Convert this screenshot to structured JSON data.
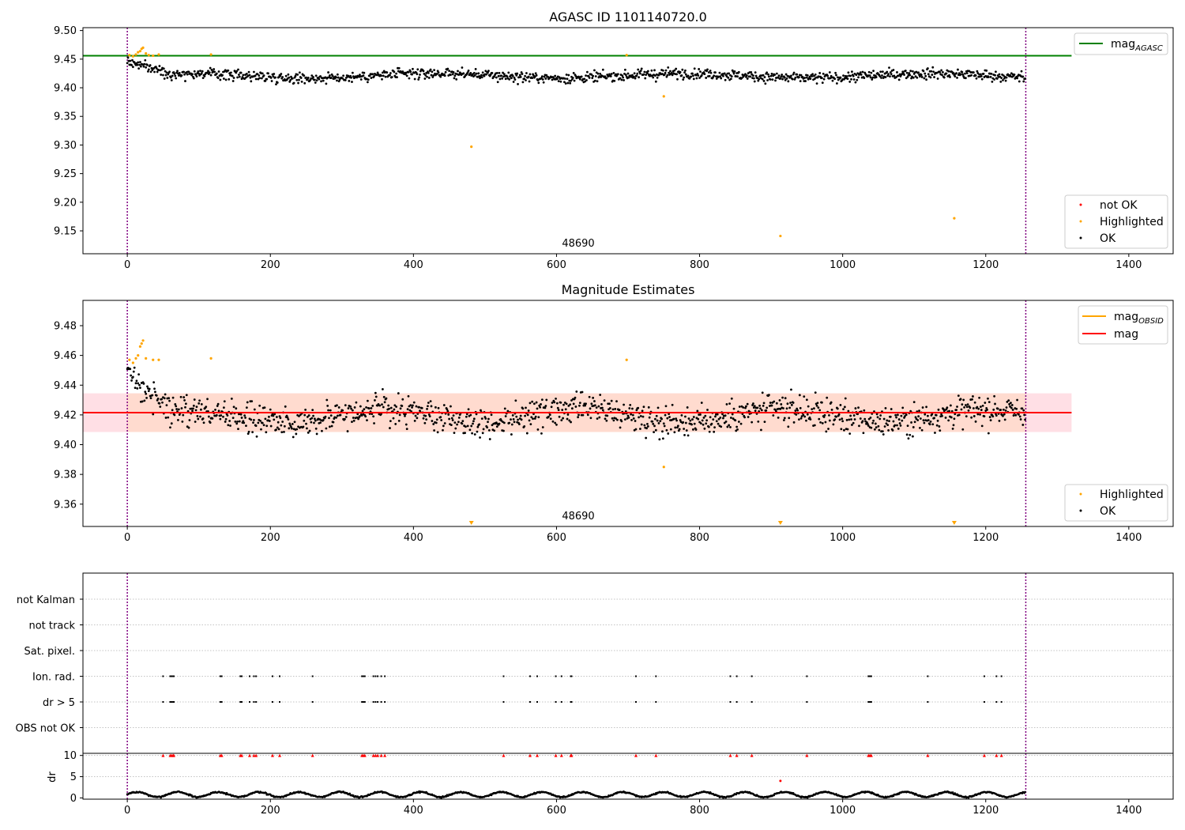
{
  "figure": {
    "colors": {
      "ok": "#000000",
      "highlighted": "#ffa500",
      "not_ok": "#ff0000",
      "mag_agasc_line": "#008000",
      "mag_line": "#ff0000",
      "mag_obsid": "#ffa500",
      "band_fill": "#ffc0cb",
      "band_inner_fill": "#ffd8c0",
      "obs_boundary": "#800080"
    }
  },
  "chart_data": [
    {
      "type": "scatter",
      "title": "AGASC ID 1101140720.0",
      "xlim": [
        -62,
        1462
      ],
      "ylim": [
        9.11,
        9.505
      ],
      "xticks": [
        0,
        200,
        400,
        600,
        800,
        1000,
        1200,
        1400
      ],
      "yticks": [
        9.15,
        9.2,
        9.25,
        9.3,
        9.35,
        9.4,
        9.45,
        9.5
      ],
      "obs_boundaries": [
        0,
        1256
      ],
      "obsid_label": "48690",
      "obsid_label_x": 628,
      "mag_agasc": 9.456,
      "line_x_extent": [
        -62,
        1320
      ],
      "ok_series": {
        "mean": 9.421,
        "noise": 0.011,
        "n": 1256
      },
      "highlighted_points": [
        {
          "x": 3,
          "y": 9.457
        },
        {
          "x": 8,
          "y": 9.455
        },
        {
          "x": 12,
          "y": 9.458
        },
        {
          "x": 15,
          "y": 9.462
        },
        {
          "x": 18,
          "y": 9.464
        },
        {
          "x": 20,
          "y": 9.468
        },
        {
          "x": 22,
          "y": 9.47
        },
        {
          "x": 26,
          "y": 9.46
        },
        {
          "x": 30,
          "y": 9.457
        },
        {
          "x": 36,
          "y": 9.456
        },
        {
          "x": 44,
          "y": 9.458
        },
        {
          "x": 117,
          "y": 9.458
        },
        {
          "x": 481,
          "y": 9.297
        },
        {
          "x": 698,
          "y": 9.457
        },
        {
          "x": 750,
          "y": 9.385
        },
        {
          "x": 913,
          "y": 9.141
        },
        {
          "x": 1156,
          "y": 9.172
        }
      ],
      "legend_line": [
        {
          "label": "mag",
          "subscript": "AGASC"
        }
      ],
      "legend_points": [
        {
          "label": "not OK"
        },
        {
          "label": "Highlighted"
        },
        {
          "label": "OK"
        }
      ]
    },
    {
      "type": "scatter",
      "title": "Magnitude Estimates",
      "xlim": [
        -62,
        1462
      ],
      "ylim": [
        9.345,
        9.497
      ],
      "xticks": [
        0,
        200,
        400,
        600,
        800,
        1000,
        1200,
        1400
      ],
      "yticks": [
        9.36,
        9.38,
        9.4,
        9.42,
        9.44,
        9.46,
        9.48
      ],
      "obs_boundaries": [
        0,
        1256
      ],
      "obsid_label": "48690",
      "obsid_label_x": 628,
      "mag": 9.4215,
      "mag_band": [
        9.4085,
        9.4345
      ],
      "mag_band_inner_x": [
        0,
        1256
      ],
      "line_x_extent": [
        -62,
        1320
      ],
      "ok_series": {
        "mean": 9.4195,
        "noise": 0.0115,
        "n": 1256
      },
      "highlighted_points": [
        {
          "x": 3,
          "y": 9.457
        },
        {
          "x": 8,
          "y": 9.455
        },
        {
          "x": 12,
          "y": 9.458
        },
        {
          "x": 15,
          "y": 9.46
        },
        {
          "x": 18,
          "y": 9.466
        },
        {
          "x": 20,
          "y": 9.468
        },
        {
          "x": 22,
          "y": 9.47
        },
        {
          "x": 26,
          "y": 9.458
        },
        {
          "x": 36,
          "y": 9.457
        },
        {
          "x": 44,
          "y": 9.457
        },
        {
          "x": 117,
          "y": 9.458
        },
        {
          "x": 698,
          "y": 9.457
        },
        {
          "x": 750,
          "y": 9.385
        }
      ],
      "out_of_range_markers": [
        481,
        913,
        1156
      ],
      "legend_line": [
        {
          "label": "mag",
          "subscript": "OBSID"
        },
        {
          "label": "mag"
        }
      ],
      "legend_points": [
        {
          "label": "Highlighted"
        },
        {
          "label": "OK"
        }
      ]
    },
    {
      "type": "scatter",
      "title": "",
      "xlim": [
        -62,
        1462
      ],
      "categories": [
        "not Kalman",
        "not track",
        "Sat. pixel.",
        "Ion. rad.",
        "dr > 5",
        "OBS not OK"
      ],
      "obs_boundaries": [
        0,
        1256
      ],
      "flag_x": [
        50,
        60,
        62,
        64,
        65,
        130,
        132,
        158,
        160,
        171,
        177,
        180,
        203,
        213,
        259,
        328,
        330,
        332,
        344,
        347,
        350,
        355,
        360,
        526,
        563,
        573,
        599,
        607,
        620,
        621,
        711,
        739,
        843,
        852,
        873,
        950,
        1036,
        1038,
        1040,
        1119,
        1198,
        1215,
        1222
      ],
      "flag_rows": [
        "Ion. rad.",
        "dr > 5"
      ]
    },
    {
      "type": "line",
      "title": "",
      "ylabel": "dr",
      "xlim": [
        -62,
        1462
      ],
      "ylim": [
        -0.3,
        10.5
      ],
      "xticks": [
        0,
        200,
        400,
        600,
        800,
        1000,
        1200,
        1400
      ],
      "yticks": [
        0,
        5,
        10
      ],
      "obs_boundaries": [
        0,
        1256
      ],
      "series": {
        "mean": 0.8,
        "amplitude": 0.6,
        "n": 1256
      },
      "capped_x": [
        50,
        60,
        62,
        64,
        65,
        130,
        132,
        158,
        160,
        171,
        177,
        180,
        203,
        213,
        259,
        328,
        330,
        332,
        344,
        347,
        350,
        355,
        360,
        526,
        563,
        573,
        599,
        607,
        620,
        621,
        711,
        739,
        843,
        852,
        873,
        950,
        1036,
        1038,
        1040,
        1119,
        1198,
        1215,
        1222
      ],
      "capped_value": 10,
      "not_ok_points": [
        {
          "x": 913,
          "y": 4.0
        }
      ]
    }
  ]
}
